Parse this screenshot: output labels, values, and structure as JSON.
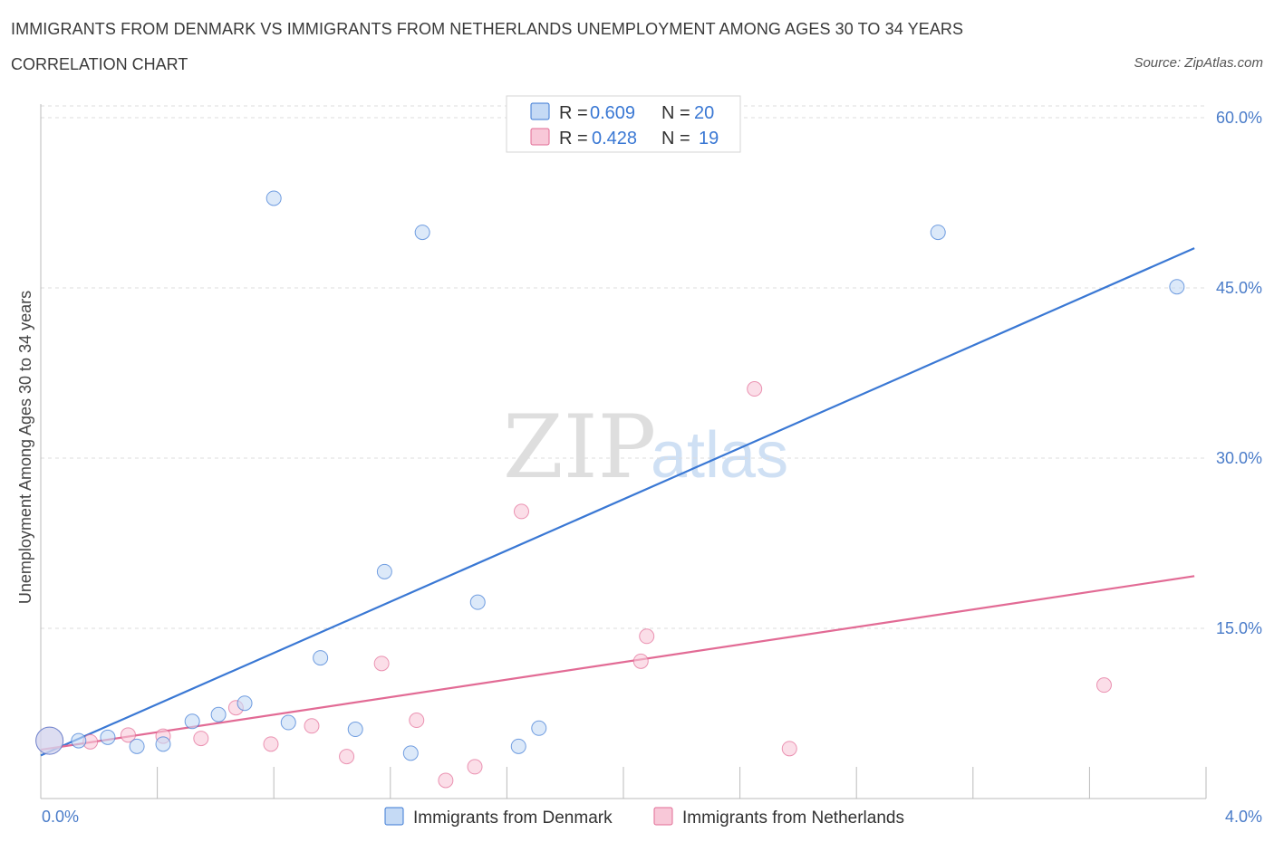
{
  "header": {
    "title": "IMMIGRANTS FROM DENMARK VS IMMIGRANTS FROM NETHERLANDS UNEMPLOYMENT AMONG AGES 30 TO 34 YEARS",
    "subtitle": "CORRELATION CHART",
    "source": "Source: ZipAtlas.com"
  },
  "watermark": {
    "part1": "ZIP",
    "part2": "atlas"
  },
  "legend": {
    "rows": [
      {
        "r_label": "R =",
        "r_value": "0.609",
        "n_label": "N =",
        "n_value": "20"
      },
      {
        "r_label": "R =",
        "r_value": "0.428",
        "n_label": "N =",
        "n_value": "19"
      }
    ]
  },
  "colors": {
    "denmark": "#3a78d4",
    "denmark_fill": "#c5daf5",
    "netherlands": "#e26b95",
    "netherlands_fill": "#f8c8d8",
    "grid": "#dddddd",
    "tick_label": "#4a7cc9"
  },
  "chart_data": {
    "type": "scatter",
    "title": "IMMIGRANTS FROM DENMARK VS IMMIGRANTS FROM NETHERLANDS UNEMPLOYMENT AMONG AGES 30 TO 34 YEARS",
    "subtitle": "CORRELATION CHART",
    "xlabel": "",
    "ylabel": "Unemployment Among Ages 30 to 34 years",
    "xlim": [
      0.0,
      4.0
    ],
    "ylim": [
      0.0,
      60.0
    ],
    "x_tick_labels": [
      "0.0%",
      "4.0%"
    ],
    "y_ticks": [
      15,
      30,
      45,
      60
    ],
    "y_tick_labels": [
      "15.0%",
      "30.0%",
      "45.0%",
      "60.0%"
    ],
    "grid": true,
    "legend_placement": "top-center",
    "series": [
      {
        "name": "Immigrants from Denmark",
        "r": 0.609,
        "n": 20,
        "trend": {
          "x": [
            0.0,
            3.96
          ],
          "y": [
            3.8,
            48.5
          ]
        },
        "points": [
          {
            "x": 0.03,
            "y": 5.1,
            "big": true
          },
          {
            "x": 0.13,
            "y": 5.1
          },
          {
            "x": 0.23,
            "y": 5.4
          },
          {
            "x": 0.33,
            "y": 4.6
          },
          {
            "x": 0.42,
            "y": 4.8
          },
          {
            "x": 0.52,
            "y": 6.8
          },
          {
            "x": 0.61,
            "y": 7.4
          },
          {
            "x": 0.7,
            "y": 8.4
          },
          {
            "x": 0.8,
            "y": 52.9
          },
          {
            "x": 0.85,
            "y": 6.7
          },
          {
            "x": 0.96,
            "y": 12.4
          },
          {
            "x": 1.08,
            "y": 6.1
          },
          {
            "x": 1.18,
            "y": 20.0
          },
          {
            "x": 1.27,
            "y": 4.0
          },
          {
            "x": 1.31,
            "y": 49.9
          },
          {
            "x": 1.5,
            "y": 17.3
          },
          {
            "x": 1.64,
            "y": 4.6
          },
          {
            "x": 1.71,
            "y": 6.2
          },
          {
            "x": 3.08,
            "y": 49.9
          },
          {
            "x": 3.9,
            "y": 45.1
          }
        ]
      },
      {
        "name": "Immigrants from Netherlands",
        "r": 0.428,
        "n": 19,
        "trend": {
          "x": [
            0.0,
            3.96
          ],
          "y": [
            4.3,
            19.6
          ]
        },
        "points": [
          {
            "x": 0.03,
            "y": 5.1,
            "big": true
          },
          {
            "x": 0.17,
            "y": 5.0
          },
          {
            "x": 0.3,
            "y": 5.6
          },
          {
            "x": 0.42,
            "y": 5.5
          },
          {
            "x": 0.55,
            "y": 5.3
          },
          {
            "x": 0.67,
            "y": 8.0
          },
          {
            "x": 0.79,
            "y": 4.8
          },
          {
            "x": 0.93,
            "y": 6.4
          },
          {
            "x": 1.05,
            "y": 3.7
          },
          {
            "x": 1.17,
            "y": 11.9
          },
          {
            "x": 1.29,
            "y": 6.9
          },
          {
            "x": 1.39,
            "y": 1.6
          },
          {
            "x": 1.49,
            "y": 2.8
          },
          {
            "x": 1.65,
            "y": 25.3
          },
          {
            "x": 2.06,
            "y": 12.1
          },
          {
            "x": 2.08,
            "y": 14.3
          },
          {
            "x": 2.45,
            "y": 36.1
          },
          {
            "x": 2.57,
            "y": 4.4
          },
          {
            "x": 3.65,
            "y": 10.0
          }
        ]
      }
    ]
  }
}
